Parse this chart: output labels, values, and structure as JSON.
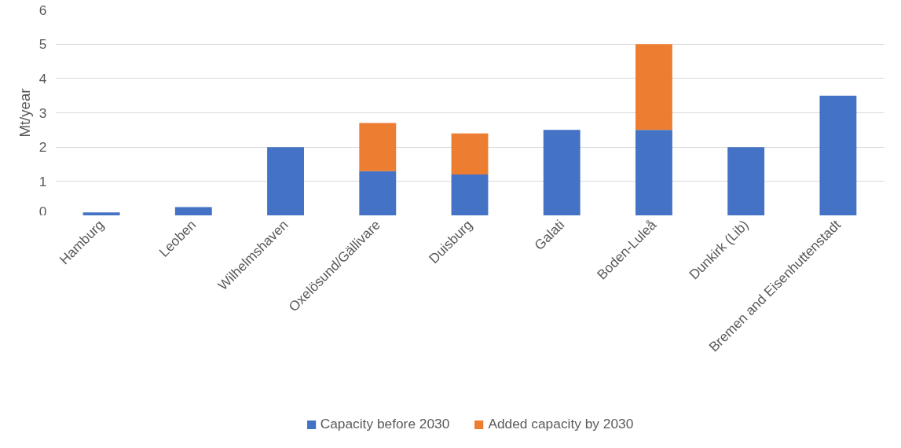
{
  "chart_data": {
    "type": "bar",
    "stacked": true,
    "ylabel": "Mt/year",
    "categories": [
      "Hamburg",
      "Leoben",
      "Wilhelmshaven",
      "Oxelösund/Gällivare",
      "Duisburg",
      "Galati",
      "Boden-Luleå",
      "Dunkirk (Lib)",
      "Bremen and Eisenhuttenstadt"
    ],
    "series": [
      {
        "name": "Capacity before 2030",
        "color": "#4472c4",
        "values": [
          0.1,
          0.25,
          2.0,
          1.3,
          1.2,
          2.5,
          2.5,
          2.0,
          3.5
        ]
      },
      {
        "name": "Added capacity by 2030",
        "color": "#ed7d31",
        "values": [
          null,
          null,
          null,
          1.4,
          1.2,
          null,
          2.5,
          null,
          null
        ]
      }
    ],
    "ylim": [
      0,
      6
    ],
    "yticks": [
      0,
      1,
      2,
      3,
      4,
      5,
      6
    ],
    "grid": "y",
    "legend": "bottom"
  }
}
